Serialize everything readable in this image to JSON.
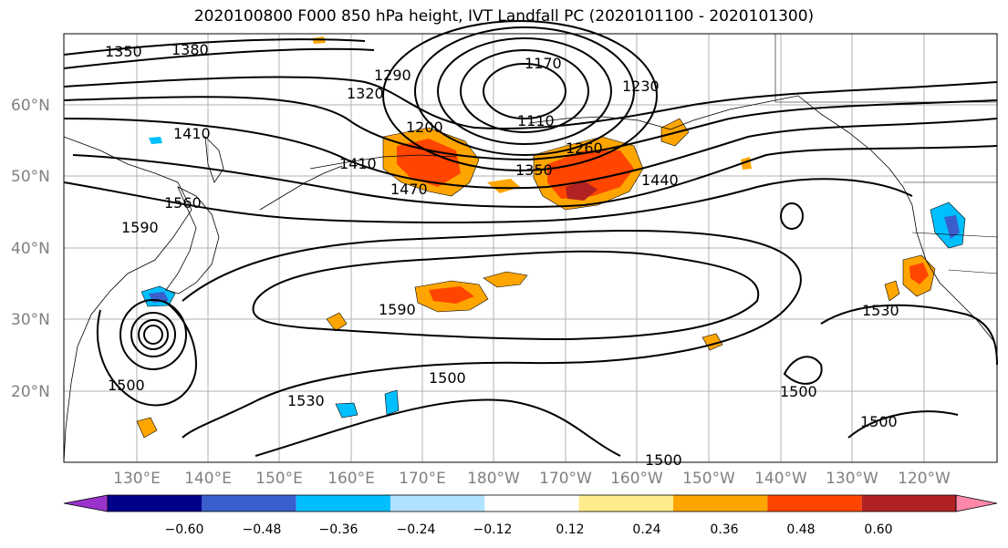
{
  "title": "2020100800 F000 850 hPa height, IVT Landfall PC (2020101100 - 2020101300)",
  "lat_labels": [
    "60°N",
    "50°N",
    "40°N",
    "30°N",
    "20°N"
  ],
  "lon_labels": [
    "130°E",
    "140°E",
    "150°E",
    "160°E",
    "170°E",
    "180°W",
    "170°W",
    "160°W",
    "150°W",
    "140°W",
    "130°W",
    "120°W"
  ],
  "contour_labels": [
    "1350",
    "1380",
    "1290",
    "1320",
    "1410",
    "1470",
    "1170",
    "1110",
    "1200",
    "1230",
    "1260",
    "1350",
    "1440",
    "1410",
    "1560",
    "1590",
    "1590",
    "1530",
    "1530",
    "1500",
    "1500",
    "1500",
    "1500",
    "1500"
  ],
  "colorbar": {
    "ticks": [
      "−0.60",
      "−0.48",
      "−0.36",
      "−0.24",
      "−0.12",
      "0.12",
      "0.24",
      "0.36",
      "0.48",
      "0.60"
    ],
    "colors": [
      "#9933cc",
      "#00008b",
      "#3a5fcd",
      "#00bfff",
      "#b0e2ff",
      "#ffffff",
      "#ffec8b",
      "#ffa500",
      "#ff4500",
      "#b22222",
      "#ff88aa"
    ]
  }
}
